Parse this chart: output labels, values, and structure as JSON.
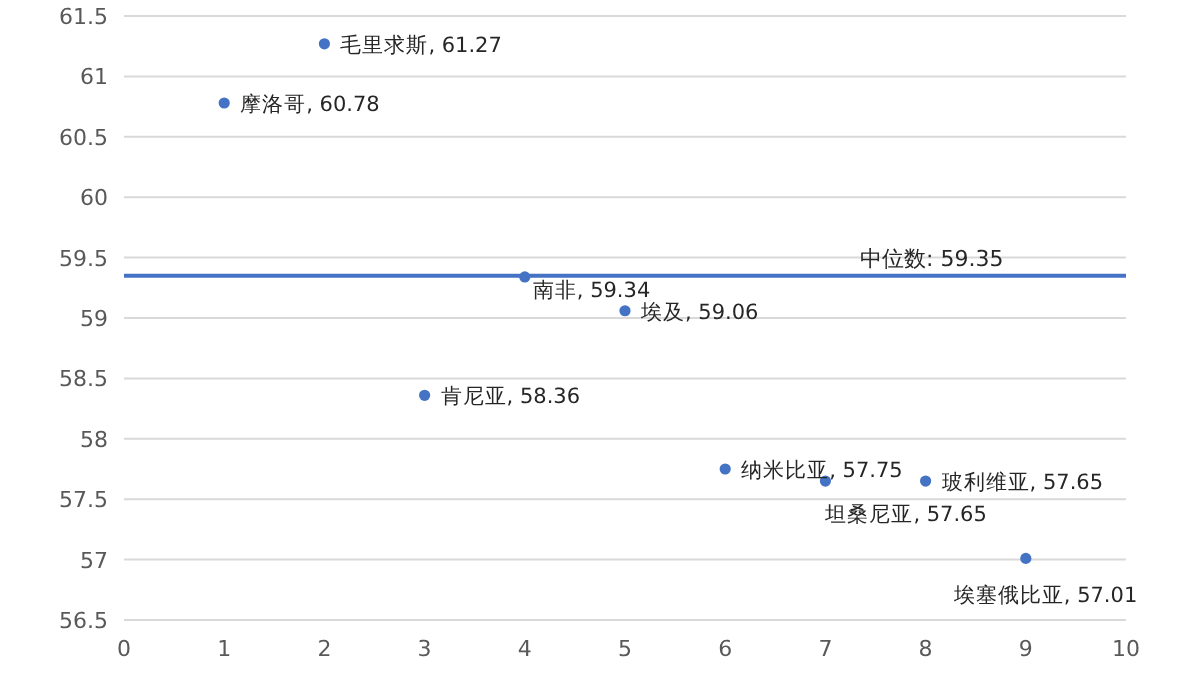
{
  "chart_data": {
    "type": "scatter",
    "x": [
      1,
      2,
      3,
      4,
      5,
      6,
      7,
      8,
      9
    ],
    "series": [
      {
        "color": "#4472c4",
        "values": [
          60.78,
          61.27,
          58.36,
          59.34,
          59.06,
          57.75,
          57.65,
          57.65,
          57.01
        ]
      }
    ],
    "marker": "circle",
    "grid": "y",
    "xlim": [
      0,
      10
    ],
    "xticks": [
      0,
      1,
      2,
      3,
      4,
      5,
      6,
      7,
      8,
      9,
      10
    ],
    "ylim": [
      56.5,
      61.5
    ],
    "yticks": [
      56.5,
      57,
      57.5,
      58,
      58.5,
      59,
      59.5,
      60,
      60.5,
      61,
      61.5
    ],
    "ref_lines": [
      {
        "axis": "y",
        "value": 59.35,
        "label": "中位数: 59.35",
        "color": "#4472c4"
      }
    ],
    "annotations": [
      {
        "text": "摩洛哥, 60.78",
        "x": 1,
        "y": 60.78
      },
      {
        "text": "毛里求斯, 61.27",
        "x": 2,
        "y": 61.27
      },
      {
        "text": "肯尼亚, 58.36",
        "x": 3,
        "y": 58.36
      },
      {
        "text": "南非, 59.34",
        "x": 4,
        "y": 59.34
      },
      {
        "text": "埃及, 59.06",
        "x": 5,
        "y": 59.06
      },
      {
        "text": "纳米比亚, 57.75",
        "x": 6,
        "y": 57.75
      },
      {
        "text": "坦桑尼亚, 57.65",
        "x": 7,
        "y": 57.65
      },
      {
        "text": "玻利维亚, 57.65",
        "x": 8,
        "y": 57.65
      },
      {
        "text": "埃塞俄比亚, 57.01",
        "x": 9,
        "y": 57.01
      }
    ]
  }
}
